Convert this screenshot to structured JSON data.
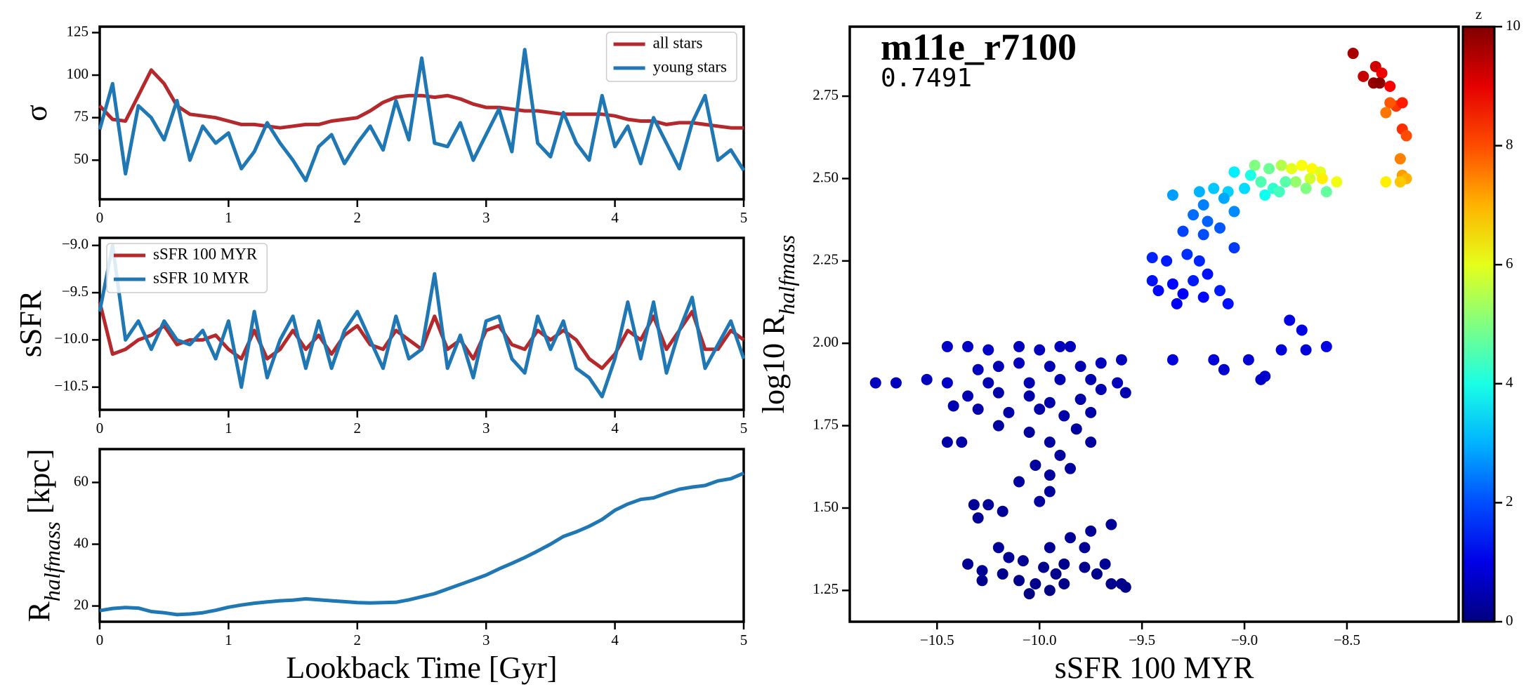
{
  "chart_data": [
    {
      "type": "line",
      "ylabel": {
        "text": "σ"
      },
      "xlim": [
        0,
        5
      ],
      "xticks": [
        0,
        1,
        2,
        3,
        4,
        5
      ],
      "ylim": [
        27,
        128.5
      ],
      "yticks": [
        50,
        75,
        100,
        125
      ],
      "legend": "upper right",
      "x": [
        0,
        0.1,
        0.2,
        0.3,
        0.4,
        0.5,
        0.6,
        0.7,
        0.8,
        0.9,
        1,
        1.1,
        1.2,
        1.3,
        1.4,
        1.5,
        1.6,
        1.7,
        1.8,
        1.9,
        2,
        2.1,
        2.2,
        2.3,
        2.4,
        2.5,
        2.6,
        2.7,
        2.8,
        2.9,
        3,
        3.1,
        3.2,
        3.3,
        3.4,
        3.5,
        3.6,
        3.7,
        3.8,
        3.9,
        4,
        4.1,
        4.2,
        4.3,
        4.4,
        4.5,
        4.6,
        4.7,
        4.8,
        4.9,
        5
      ],
      "series": [
        {
          "name": "all stars",
          "color": "#b5282b",
          "values": [
            82,
            74,
            73,
            88,
            103,
            95,
            82,
            77,
            76,
            75,
            73,
            71,
            71,
            70,
            69,
            70,
            71,
            71,
            73,
            74,
            75,
            79,
            84,
            87,
            88,
            88,
            87,
            88,
            86,
            83,
            81,
            81,
            80,
            79,
            79,
            78,
            77,
            77,
            77,
            77,
            76,
            74,
            73,
            73,
            71,
            72,
            72,
            71,
            70,
            69,
            69
          ]
        },
        {
          "name": "young stars",
          "color": "#1f77b4",
          "values": [
            68,
            95,
            42,
            82,
            75,
            62,
            85,
            50,
            70,
            60,
            66,
            45,
            55,
            72,
            60,
            50,
            38,
            58,
            65,
            48,
            60,
            70,
            56,
            85,
            62,
            110,
            60,
            58,
            72,
            50,
            65,
            80,
            55,
            115,
            60,
            52,
            78,
            60,
            50,
            88,
            58,
            70,
            48,
            75,
            60,
            45,
            72,
            88,
            50,
            56,
            44
          ]
        }
      ]
    },
    {
      "type": "line",
      "ylabel": {
        "text": "sSFR"
      },
      "xlim": [
        0,
        5
      ],
      "xticks": [
        0,
        1,
        2,
        3,
        4,
        5
      ],
      "ylim": [
        -10.74,
        -8.92
      ],
      "yticks": [
        {
          "value": -9.0,
          "label": "−9.0"
        },
        {
          "value": -9.5,
          "label": "−9.5"
        },
        {
          "value": -10.0,
          "label": "−10.0"
        },
        {
          "value": -10.5,
          "label": "−10.5"
        }
      ],
      "legend": "upper left",
      "x": [
        0,
        0.1,
        0.2,
        0.3,
        0.4,
        0.5,
        0.6,
        0.7,
        0.8,
        0.9,
        1,
        1.1,
        1.2,
        1.3,
        1.4,
        1.5,
        1.6,
        1.7,
        1.8,
        1.9,
        2,
        2.1,
        2.2,
        2.3,
        2.4,
        2.5,
        2.6,
        2.7,
        2.8,
        2.9,
        3,
        3.1,
        3.2,
        3.3,
        3.4,
        3.5,
        3.6,
        3.7,
        3.8,
        3.9,
        4,
        4.1,
        4.2,
        4.3,
        4.4,
        4.5,
        4.6,
        4.7,
        4.8,
        4.9,
        5
      ],
      "series": [
        {
          "name": "sSFR 100 MYR",
          "color": "#b5282b",
          "values": [
            -9.6,
            -10.15,
            -10.1,
            -10.0,
            -9.95,
            -9.85,
            -10.05,
            -10.0,
            -10.0,
            -9.95,
            -10.1,
            -10.2,
            -9.9,
            -10.2,
            -10.1,
            -9.9,
            -10.1,
            -9.95,
            -10.15,
            -9.95,
            -9.85,
            -10.05,
            -10.1,
            -9.9,
            -10.0,
            -10.1,
            -9.75,
            -10.1,
            -10.0,
            -10.2,
            -9.9,
            -9.85,
            -10.05,
            -10.1,
            -9.9,
            -10.0,
            -9.9,
            -10.0,
            -10.2,
            -10.3,
            -10.15,
            -9.9,
            -10.0,
            -9.75,
            -10.1,
            -9.9,
            -9.7,
            -10.1,
            -10.1,
            -9.9,
            -10.0
          ]
        },
        {
          "name": "sSFR 10 MYR",
          "color": "#1f77b4",
          "values": [
            -9.7,
            -9.0,
            -10.0,
            -9.8,
            -10.1,
            -9.8,
            -10.0,
            -10.05,
            -9.9,
            -10.2,
            -9.8,
            -10.5,
            -9.7,
            -10.4,
            -10.0,
            -9.75,
            -10.3,
            -9.8,
            -10.3,
            -9.9,
            -9.7,
            -10.0,
            -10.3,
            -9.75,
            -10.2,
            -10.1,
            -9.3,
            -10.3,
            -9.95,
            -10.4,
            -9.8,
            -9.75,
            -10.2,
            -10.35,
            -9.75,
            -10.1,
            -9.8,
            -10.3,
            -10.4,
            -10.6,
            -10.2,
            -9.6,
            -10.2,
            -9.6,
            -10.35,
            -9.9,
            -9.55,
            -10.3,
            -10.05,
            -9.8,
            -10.2
          ]
        }
      ]
    },
    {
      "type": "line",
      "ylabel": {
        "text": "R",
        "sub": "halfmass",
        "after": " [kpc]"
      },
      "xlabel": "Lookback Time [Gyr]",
      "xlim": [
        0,
        5
      ],
      "xticks": [
        0,
        1,
        2,
        3,
        4,
        5
      ],
      "ylim": [
        14.9,
        70.8
      ],
      "yticks": [
        20,
        40,
        60
      ],
      "x": [
        0,
        0.1,
        0.2,
        0.3,
        0.4,
        0.5,
        0.6,
        0.7,
        0.8,
        0.9,
        1,
        1.1,
        1.2,
        1.3,
        1.4,
        1.5,
        1.6,
        1.7,
        1.8,
        1.9,
        2,
        2.1,
        2.2,
        2.3,
        2.4,
        2.5,
        2.6,
        2.7,
        2.8,
        2.9,
        3,
        3.1,
        3.2,
        3.3,
        3.4,
        3.5,
        3.6,
        3.7,
        3.8,
        3.9,
        4,
        4.1,
        4.2,
        4.3,
        4.4,
        4.5,
        4.6,
        4.7,
        4.8,
        4.9,
        5
      ],
      "series": [
        {
          "color": "#1f77b4",
          "values": [
            18.5,
            19.2,
            19.5,
            19.3,
            18.2,
            17.8,
            17.2,
            17.4,
            17.8,
            18.6,
            19.6,
            20.3,
            20.9,
            21.3,
            21.7,
            21.9,
            22.3,
            22.0,
            21.7,
            21.4,
            21.1,
            21.0,
            21.1,
            21.2,
            22.0,
            23.0,
            24.0,
            25.5,
            27.0,
            28.5,
            30.0,
            32.0,
            33.8,
            35.7,
            37.8,
            40.0,
            42.5,
            44.0,
            45.8,
            48.0,
            51.0,
            53.0,
            54.5,
            55.0,
            56.5,
            57.8,
            58.5,
            59.0,
            60.5,
            61.2,
            63.0
          ]
        }
      ]
    },
    {
      "type": "scatter",
      "title": "m11e_r7100",
      "subtitle": "0.7491",
      "xlabel": "sSFR 100 MYR",
      "ylabel": {
        "text": "log10 R",
        "sub": "halfmass"
      },
      "xlim": [
        -10.926,
        -7.955
      ],
      "xticks": [
        {
          "value": -10.5,
          "label": "−10.5"
        },
        {
          "value": -10.0,
          "label": "−10.0"
        },
        {
          "value": -9.5,
          "label": "−9.5"
        },
        {
          "value": -9.0,
          "label": "−9.0"
        },
        {
          "value": -8.5,
          "label": "−8.5"
        }
      ],
      "ylim": [
        1.155,
        2.961
      ],
      "yticks": [
        1.25,
        {
          "value": 1.5,
          "label": "1.50"
        },
        1.75,
        {
          "value": 2.0,
          "label": "2.00"
        },
        2.25,
        {
          "value": 2.5,
          "label": "2.50"
        },
        2.75
      ],
      "colormap": "jet",
      "zlabel": "z",
      "zlim": [
        0,
        10
      ],
      "zticks": [
        0,
        2,
        4,
        6,
        8,
        10
      ],
      "x": [
        -8.47,
        -8.42,
        -8.36,
        -8.33,
        -8.37,
        -8.34,
        -8.29,
        -8.26,
        -8.29,
        -8.31,
        -8.23,
        -8.23,
        -8.21,
        -8.24,
        -8.23,
        -8.21,
        -8.24,
        -8.31,
        -8.95,
        -8.88,
        -8.82,
        -8.77,
        -8.72,
        -8.67,
        -8.63,
        -8.62,
        -8.68,
        -8.75,
        -8.8,
        -8.86,
        -8.92,
        -8.97,
        -9.05,
        -9.0,
        -8.9,
        -8.83,
        -8.7,
        -8.6,
        -8.55,
        -9.35,
        -9.22,
        -9.15,
        -9.08,
        -9.1,
        -9.2,
        -9.25,
        -9.18,
        -9.12,
        -9.05,
        -9.3,
        -9.2,
        -9.05,
        -9.45,
        -9.38,
        -9.28,
        -9.22,
        -9.18,
        -9.25,
        -9.35,
        -9.45,
        -9.42,
        -9.3,
        -9.2,
        -9.12,
        -9.33,
        -9.08,
        -9.35,
        -9.15,
        -9.1,
        -8.98,
        -8.9,
        -8.82,
        -8.78,
        -8.72,
        -8.7,
        -8.6,
        -8.92,
        -10.8,
        -10.7,
        -10.55,
        -10.45,
        -10.45,
        -10.35,
        -10.25,
        -10.1,
        -10.0,
        -9.9,
        -9.85,
        -10.3,
        -10.2,
        -10.1,
        -9.95,
        -9.8,
        -9.7,
        -9.6,
        -10.25,
        -10.05,
        -9.9,
        -9.75,
        -9.62,
        -10.35,
        -10.2,
        -10.05,
        -9.95,
        -9.8,
        -9.7,
        -9.58,
        -10.42,
        -10.3,
        -10.15,
        -10.0,
        -9.88,
        -9.75,
        -10.45,
        -10.38,
        -10.2,
        -10.05,
        -9.95,
        -9.82,
        -9.75,
        -9.9,
        -10.02,
        -9.85,
        -9.95,
        -10.1,
        -9.95,
        -10.0,
        -10.32,
        -10.25,
        -10.18,
        -10.3,
        -10.2,
        -10.35,
        -10.28,
        -10.18,
        -10.08,
        -9.98,
        -9.88,
        -9.78,
        -9.68,
        -10.1,
        -10.02,
        -9.95,
        -9.88,
        -10.05,
        -9.92,
        -9.78,
        -9.65,
        -9.75,
        -9.85,
        -9.95,
        -10.28,
        -9.6,
        -9.65,
        -9.58,
        -9.72,
        -10.15
      ],
      "y": [
        2.88,
        2.81,
        2.84,
        2.82,
        2.79,
        2.79,
        2.78,
        2.72,
        2.73,
        2.7,
        2.73,
        2.65,
        2.63,
        2.56,
        2.51,
        2.5,
        2.49,
        2.49,
        2.54,
        2.53,
        2.54,
        2.53,
        2.54,
        2.53,
        2.52,
        2.5,
        2.5,
        2.49,
        2.49,
        2.47,
        2.49,
        2.51,
        2.52,
        2.47,
        2.45,
        2.46,
        2.47,
        2.46,
        2.49,
        2.45,
        2.46,
        2.47,
        2.46,
        2.44,
        2.42,
        2.39,
        2.37,
        2.35,
        2.4,
        2.34,
        2.33,
        2.29,
        2.26,
        2.25,
        2.27,
        2.25,
        2.21,
        2.19,
        2.18,
        2.19,
        2.16,
        2.15,
        2.14,
        2.16,
        2.12,
        2.12,
        1.95,
        1.95,
        1.92,
        1.95,
        1.9,
        1.98,
        2.07,
        2.04,
        1.98,
        1.99,
        1.89,
        1.88,
        1.88,
        1.89,
        1.88,
        1.99,
        1.99,
        1.98,
        1.99,
        1.98,
        1.99,
        1.99,
        1.92,
        1.93,
        1.94,
        1.93,
        1.93,
        1.94,
        1.95,
        1.88,
        1.88,
        1.89,
        1.89,
        1.88,
        1.84,
        1.85,
        1.84,
        1.82,
        1.83,
        1.86,
        1.85,
        1.81,
        1.8,
        1.79,
        1.8,
        1.78,
        1.79,
        1.7,
        1.7,
        1.75,
        1.73,
        1.7,
        1.74,
        1.7,
        1.66,
        1.63,
        1.62,
        1.6,
        1.58,
        1.55,
        1.52,
        1.51,
        1.51,
        1.49,
        1.47,
        1.38,
        1.33,
        1.31,
        1.3,
        1.34,
        1.32,
        1.33,
        1.32,
        1.33,
        1.28,
        1.27,
        1.25,
        1.27,
        1.24,
        1.3,
        1.38,
        1.45,
        1.43,
        1.41,
        1.38,
        1.28,
        1.27,
        1.27,
        1.26,
        1.3,
        1.35
      ],
      "z": [
        9.6,
        9.3,
        9.2,
        8.9,
        9.8,
        9.9,
        8.8,
        8.2,
        7.9,
        7.6,
        8.5,
        8.3,
        8.0,
        7.5,
        7.2,
        7.0,
        6.8,
        6.4,
        5.0,
        4.8,
        5.5,
        6.0,
        6.2,
        6.3,
        6.0,
        6.4,
        5.8,
        5.2,
        4.6,
        4.2,
        4.5,
        4.0,
        3.6,
        3.4,
        3.9,
        4.4,
        5.0,
        4.7,
        6.1,
        2.8,
        3.0,
        3.2,
        3.3,
        2.9,
        2.5,
        2.3,
        2.2,
        2.1,
        2.6,
        1.9,
        2.0,
        1.8,
        1.6,
        1.5,
        1.7,
        1.6,
        1.4,
        1.5,
        1.3,
        1.4,
        1.3,
        1.2,
        1.3,
        1.5,
        1.2,
        1.4,
        0.9,
        0.9,
        0.8,
        0.8,
        0.8,
        0.9,
        1.0,
        1.0,
        0.9,
        1.0,
        0.7,
        0.6,
        0.6,
        0.6,
        0.7,
        0.7,
        0.7,
        0.7,
        0.6,
        0.6,
        0.6,
        0.6,
        0.6,
        0.5,
        0.6,
        0.5,
        0.5,
        0.6,
        0.6,
        0.5,
        0.5,
        0.5,
        0.5,
        0.6,
        0.5,
        0.4,
        0.4,
        0.4,
        0.4,
        0.5,
        0.5,
        0.5,
        0.4,
        0.4,
        0.4,
        0.4,
        0.4,
        0.4,
        0.4,
        0.3,
        0.3,
        0.3,
        0.3,
        0.3,
        0.3,
        0.3,
        0.3,
        0.3,
        0.3,
        0.3,
        0.3,
        0.25,
        0.25,
        0.25,
        0.25,
        0.25,
        0.2,
        0.2,
        0.15,
        0.2,
        0.15,
        0.15,
        0.15,
        0.2,
        0.1,
        0.1,
        0.05,
        0.1,
        0.05,
        0.1,
        0.2,
        0.25,
        0.25,
        0.25,
        0.2,
        0.15,
        0.1,
        0.1,
        0.1,
        0.15,
        0.2
      ]
    }
  ]
}
